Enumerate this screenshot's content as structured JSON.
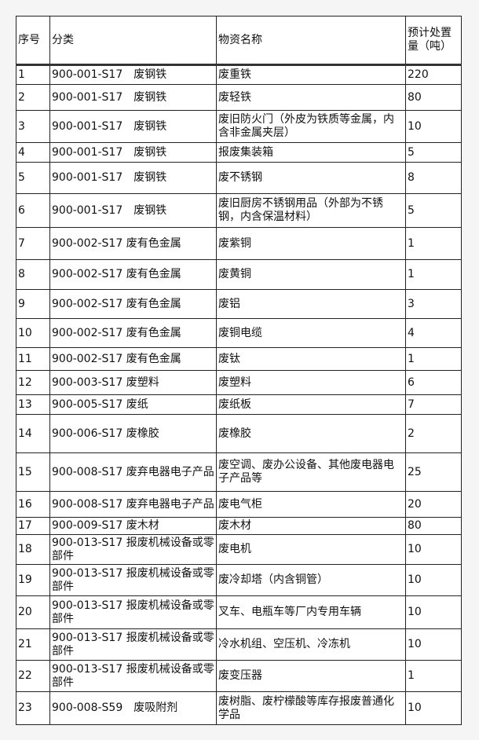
{
  "header": [
    "序号",
    "分类",
    "物资名称",
    "预计处置量（吨）"
  ],
  "rows": [
    [
      "1",
      "900-001-S17　废钢铁",
      "废重铁",
      "220"
    ],
    [
      "2",
      "900-001-S17　废钢铁",
      "废轻铁",
      "80"
    ],
    [
      "3",
      "900-001-S17　废钢铁",
      "废旧防火门（外皮为铁质等金属，内含非金属夹层）",
      "10"
    ],
    [
      "4",
      "900-001-S17　废钢铁",
      "报废集装箱",
      "5"
    ],
    [
      "5",
      "900-001-S17　废钢铁",
      "废不锈钢",
      "8"
    ],
    [
      "6",
      "900-001-S17　废钢铁",
      "废旧厨房不锈钢用品（外部为不锈钢，内含保温材料）",
      "5"
    ],
    [
      "7",
      "900-002-S17 废有色金属",
      "废紫铜",
      "1"
    ],
    [
      "8",
      "900-002-S17 废有色金属",
      "废黄铜",
      "1"
    ],
    [
      "9",
      "900-002-S17 废有色金属",
      "废铝",
      "3"
    ],
    [
      "10",
      "900-002-S17 废有色金属",
      "废铜电缆",
      "4"
    ],
    [
      "11",
      "900-002-S17 废有色金属",
      "废钛",
      "1"
    ],
    [
      "12",
      "900-003-S17 废塑料",
      "废塑料",
      "6"
    ],
    [
      "13",
      "900-005-S17 废纸",
      "废纸板",
      "7"
    ],
    [
      "14",
      "900-006-S17 废橡胶",
      "废橡胶",
      "2"
    ],
    [
      "15",
      "900-008-S17 废弃电器电子产品",
      "废空调、废办公设备、其他废电器电子产品等",
      "25"
    ],
    [
      "16",
      "900-008-S17 废弃电器电子产品",
      "废电气柜",
      "20"
    ],
    [
      "17",
      "900-009-S17 废木材",
      "废木材",
      "80"
    ],
    [
      "18",
      "900-013-S17 报废机械设备或零部件",
      "废电机",
      "10"
    ],
    [
      "19",
      "900-013-S17 报废机械设备或零部件",
      "废冷却塔（内含铜管）",
      "10"
    ],
    [
      "20",
      "900-013-S17 报废机械设备或零部件",
      "叉车、电瓶车等厂内专用车辆",
      "10"
    ],
    [
      "21",
      "900-013-S17 报废机械设备或零部件",
      "冷水机组、空压机、冷冻机",
      "10"
    ],
    [
      "22",
      "900-013-S17 报废机械设备或零部件",
      "废变压器",
      "1"
    ],
    [
      "23",
      "900-008-S59　废吸附剂",
      "废树脂、废柠檬酸等库存报废普通化学品",
      "10"
    ]
  ]
}
